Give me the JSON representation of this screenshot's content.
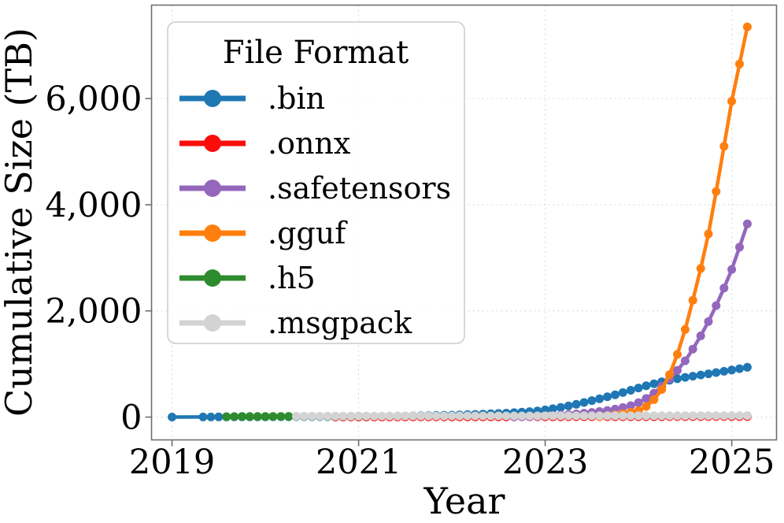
{
  "chart_data": {
    "type": "line",
    "title": "",
    "xlabel": "Year",
    "ylabel": "Cumulative Size (TB)",
    "legend_title": "File Format",
    "legend_position": "upper left",
    "grid": true,
    "grid_style": "dashed",
    "background_color": "#ffffff",
    "frame_color": "#6e6e6e",
    "grid_color": "#d9d9d9",
    "xlim": [
      2018.78,
      2025.48
    ],
    "ylim": [
      -430,
      7760
    ],
    "x_ticks": [
      {
        "value": 2019,
        "label": "2019"
      },
      {
        "value": 2021,
        "label": "2021"
      },
      {
        "value": 2023,
        "label": "2023"
      },
      {
        "value": 2025,
        "label": "2025"
      }
    ],
    "y_ticks": [
      {
        "value": 0,
        "label": "0"
      },
      {
        "value": 2000,
        "label": "2,000"
      },
      {
        "value": 4000,
        "label": "4,000"
      },
      {
        "value": 6000,
        "label": "6,000"
      }
    ],
    "series": [
      {
        "name": ".bin",
        "color": "#1f77b4",
        "points": [
          [
            2019.0,
            1
          ],
          [
            2019.333,
            2
          ],
          [
            2019.417,
            2
          ],
          [
            2019.5,
            3
          ],
          [
            2019.583,
            3
          ],
          [
            2019.667,
            4
          ],
          [
            2019.75,
            4
          ],
          [
            2019.833,
            5
          ],
          [
            2019.917,
            5
          ],
          [
            2020.0,
            5
          ],
          [
            2020.083,
            6
          ],
          [
            2020.167,
            6
          ],
          [
            2020.25,
            6
          ],
          [
            2020.333,
            7
          ],
          [
            2020.417,
            7
          ],
          [
            2020.5,
            7
          ],
          [
            2020.583,
            8
          ],
          [
            2020.667,
            8
          ],
          [
            2020.75,
            9
          ],
          [
            2020.833,
            9
          ],
          [
            2020.917,
            10
          ],
          [
            2021.0,
            11
          ],
          [
            2021.083,
            12
          ],
          [
            2021.167,
            13
          ],
          [
            2021.25,
            14
          ],
          [
            2021.333,
            16
          ],
          [
            2021.417,
            18
          ],
          [
            2021.5,
            20
          ],
          [
            2021.583,
            22
          ],
          [
            2021.667,
            25
          ],
          [
            2021.75,
            28
          ],
          [
            2021.833,
            31
          ],
          [
            2021.917,
            34
          ],
          [
            2022.0,
            38
          ],
          [
            2022.083,
            42
          ],
          [
            2022.167,
            46
          ],
          [
            2022.25,
            51
          ],
          [
            2022.333,
            56
          ],
          [
            2022.417,
            62
          ],
          [
            2022.5,
            68
          ],
          [
            2022.583,
            75
          ],
          [
            2022.667,
            83
          ],
          [
            2022.75,
            92
          ],
          [
            2022.833,
            102
          ],
          [
            2022.917,
            115
          ],
          [
            2023.0,
            135
          ],
          [
            2023.083,
            158
          ],
          [
            2023.167,
            183
          ],
          [
            2023.25,
            210
          ],
          [
            2023.333,
            240
          ],
          [
            2023.417,
            275
          ],
          [
            2023.5,
            310
          ],
          [
            2023.583,
            345
          ],
          [
            2023.667,
            382
          ],
          [
            2023.75,
            420
          ],
          [
            2023.833,
            462
          ],
          [
            2023.917,
            505
          ],
          [
            2024.0,
            548
          ],
          [
            2024.083,
            590
          ],
          [
            2024.167,
            628
          ],
          [
            2024.25,
            663
          ],
          [
            2024.333,
            695
          ],
          [
            2024.417,
            723
          ],
          [
            2024.5,
            748
          ],
          [
            2024.583,
            771
          ],
          [
            2024.667,
            793
          ],
          [
            2024.75,
            815
          ],
          [
            2024.833,
            838
          ],
          [
            2024.917,
            862
          ],
          [
            2025.0,
            886
          ],
          [
            2025.083,
            912
          ],
          [
            2025.167,
            938
          ]
        ]
      },
      {
        "name": ".onnx",
        "color": "#fb0d0d",
        "points": [
          [
            2020.75,
            2
          ],
          [
            2020.833,
            2
          ],
          [
            2020.917,
            2
          ],
          [
            2021.0,
            2
          ],
          [
            2021.083,
            2
          ],
          [
            2021.167,
            3
          ],
          [
            2021.25,
            3
          ],
          [
            2021.333,
            3
          ],
          [
            2021.417,
            3
          ],
          [
            2021.5,
            3
          ],
          [
            2021.583,
            4
          ],
          [
            2021.667,
            4
          ],
          [
            2021.75,
            4
          ],
          [
            2021.833,
            4
          ],
          [
            2021.917,
            4
          ],
          [
            2022.0,
            4
          ],
          [
            2022.083,
            4
          ],
          [
            2022.167,
            5
          ],
          [
            2022.25,
            5
          ],
          [
            2022.333,
            5
          ],
          [
            2022.417,
            5
          ],
          [
            2022.5,
            5
          ],
          [
            2022.583,
            5
          ],
          [
            2022.667,
            6
          ],
          [
            2022.75,
            6
          ],
          [
            2022.833,
            6
          ],
          [
            2022.917,
            6
          ],
          [
            2023.0,
            6
          ],
          [
            2023.083,
            6
          ],
          [
            2023.167,
            6
          ],
          [
            2023.25,
            7
          ],
          [
            2023.333,
            7
          ],
          [
            2023.417,
            7
          ],
          [
            2023.5,
            7
          ],
          [
            2023.583,
            7
          ],
          [
            2023.667,
            7
          ],
          [
            2023.75,
            8
          ],
          [
            2023.833,
            8
          ],
          [
            2023.917,
            8
          ],
          [
            2024.0,
            8
          ],
          [
            2024.083,
            8
          ],
          [
            2024.167,
            8
          ],
          [
            2024.25,
            8
          ],
          [
            2024.333,
            9
          ],
          [
            2024.417,
            9
          ],
          [
            2024.5,
            9
          ],
          [
            2024.583,
            9
          ],
          [
            2024.667,
            9
          ],
          [
            2024.75,
            10
          ],
          [
            2024.833,
            10
          ],
          [
            2024.917,
            10
          ],
          [
            2025.0,
            10
          ],
          [
            2025.083,
            10
          ],
          [
            2025.167,
            10
          ]
        ]
      },
      {
        "name": ".safetensors",
        "color": "#9467bd",
        "points": [
          [
            2022.667,
            3
          ],
          [
            2022.75,
            6
          ],
          [
            2022.833,
            10
          ],
          [
            2022.917,
            15
          ],
          [
            2023.0,
            22
          ],
          [
            2023.083,
            30
          ],
          [
            2023.167,
            39
          ],
          [
            2023.25,
            49
          ],
          [
            2023.333,
            60
          ],
          [
            2023.417,
            73
          ],
          [
            2023.5,
            88
          ],
          [
            2023.583,
            105
          ],
          [
            2023.667,
            125
          ],
          [
            2023.75,
            150
          ],
          [
            2023.833,
            180
          ],
          [
            2023.917,
            215
          ],
          [
            2024.0,
            270
          ],
          [
            2024.083,
            350
          ],
          [
            2024.167,
            450
          ],
          [
            2024.25,
            580
          ],
          [
            2024.333,
            720
          ],
          [
            2024.417,
            880
          ],
          [
            2024.5,
            1060
          ],
          [
            2024.583,
            1280
          ],
          [
            2024.667,
            1530
          ],
          [
            2024.75,
            1800
          ],
          [
            2024.833,
            2100
          ],
          [
            2024.917,
            2430
          ],
          [
            2025.0,
            2780
          ],
          [
            2025.083,
            3200
          ],
          [
            2025.167,
            3640
          ]
        ]
      },
      {
        "name": ".gguf",
        "color": "#ff7f0e",
        "points": [
          [
            2023.583,
            10
          ],
          [
            2023.667,
            25
          ],
          [
            2023.75,
            42
          ],
          [
            2023.833,
            62
          ],
          [
            2023.917,
            90
          ],
          [
            2024.0,
            120
          ],
          [
            2024.083,
            200
          ],
          [
            2024.167,
            330
          ],
          [
            2024.25,
            520
          ],
          [
            2024.333,
            800
          ],
          [
            2024.417,
            1180
          ],
          [
            2024.5,
            1650
          ],
          [
            2024.583,
            2200
          ],
          [
            2024.667,
            2800
          ],
          [
            2024.75,
            3450
          ],
          [
            2024.833,
            4250
          ],
          [
            2024.917,
            5100
          ],
          [
            2025.0,
            5950
          ],
          [
            2025.083,
            6650
          ],
          [
            2025.167,
            7350
          ]
        ]
      },
      {
        "name": ".h5",
        "color": "#2e8b2e",
        "points": [
          [
            2019.583,
            8
          ],
          [
            2019.667,
            9
          ],
          [
            2019.75,
            10
          ],
          [
            2019.833,
            10
          ],
          [
            2019.917,
            11
          ],
          [
            2020.0,
            11
          ],
          [
            2020.083,
            12
          ],
          [
            2020.167,
            12
          ],
          [
            2020.25,
            13
          ],
          [
            2020.333,
            13
          ],
          [
            2020.417,
            13
          ],
          [
            2020.5,
            14
          ],
          [
            2020.583,
            14
          ],
          [
            2020.667,
            14
          ],
          [
            2020.75,
            15
          ],
          [
            2020.833,
            15
          ],
          [
            2020.917,
            15
          ],
          [
            2021.0,
            16
          ],
          [
            2021.083,
            16
          ]
        ]
      },
      {
        "name": ".msgpack",
        "color": "#d3d3d3",
        "points": [
          [
            2020.333,
            15
          ],
          [
            2020.417,
            16
          ],
          [
            2020.5,
            16
          ],
          [
            2020.583,
            17
          ],
          [
            2020.667,
            17
          ],
          [
            2020.75,
            18
          ],
          [
            2020.833,
            18
          ],
          [
            2020.917,
            18
          ],
          [
            2021.0,
            19
          ],
          [
            2021.083,
            19
          ],
          [
            2021.167,
            19
          ],
          [
            2021.25,
            20
          ],
          [
            2021.333,
            20
          ],
          [
            2021.417,
            20
          ],
          [
            2021.5,
            20
          ],
          [
            2021.583,
            21
          ],
          [
            2021.667,
            21
          ],
          [
            2021.75,
            21
          ],
          [
            2021.833,
            21
          ],
          [
            2021.917,
            21
          ],
          [
            2022.0,
            22
          ],
          [
            2022.083,
            22
          ],
          [
            2022.167,
            22
          ],
          [
            2022.25,
            22
          ],
          [
            2022.333,
            22
          ],
          [
            2022.417,
            22
          ],
          [
            2022.5,
            23
          ],
          [
            2022.583,
            23
          ],
          [
            2022.667,
            23
          ],
          [
            2022.75,
            23
          ],
          [
            2022.833,
            23
          ],
          [
            2022.917,
            23
          ],
          [
            2023.0,
            24
          ],
          [
            2023.083,
            24
          ],
          [
            2023.167,
            24
          ],
          [
            2023.25,
            24
          ],
          [
            2023.333,
            24
          ],
          [
            2023.417,
            25
          ],
          [
            2023.5,
            25
          ],
          [
            2023.583,
            25
          ],
          [
            2023.667,
            25
          ],
          [
            2023.75,
            25
          ],
          [
            2023.833,
            25
          ],
          [
            2023.917,
            25
          ],
          [
            2024.0,
            26
          ],
          [
            2024.083,
            26
          ],
          [
            2024.167,
            26
          ],
          [
            2024.25,
            26
          ],
          [
            2024.333,
            26
          ],
          [
            2024.417,
            26
          ],
          [
            2024.5,
            27
          ],
          [
            2024.583,
            27
          ],
          [
            2024.667,
            27
          ],
          [
            2024.75,
            27
          ],
          [
            2024.833,
            27
          ],
          [
            2024.917,
            27
          ],
          [
            2025.0,
            28
          ],
          [
            2025.083,
            28
          ],
          [
            2025.167,
            28
          ]
        ]
      }
    ]
  }
}
